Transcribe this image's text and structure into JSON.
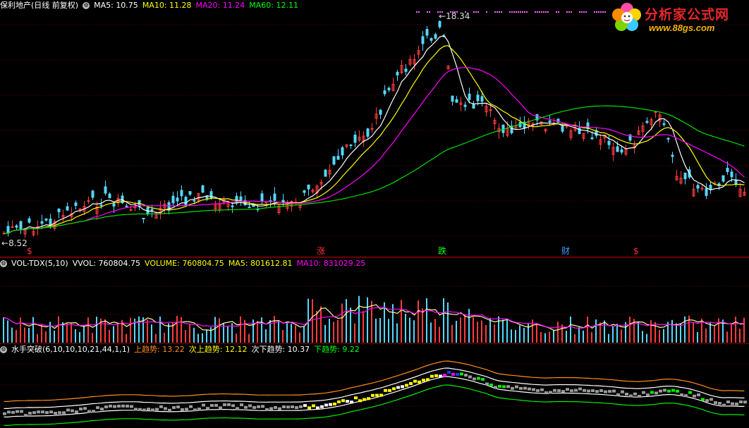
{
  "price_pane": {
    "title": "保利地产(日线 前复权)",
    "ma_labels": [
      {
        "name": "MA5",
        "value": "10.75",
        "color": "#ffffff"
      },
      {
        "name": "MA10",
        "value": "11.28",
        "color": "#ffff00"
      },
      {
        "name": "MA20",
        "value": "11.24",
        "color": "#ff00ff"
      },
      {
        "name": "MA60",
        "value": "12.11",
        "color": "#00ff00"
      }
    ],
    "high_label": "18.34",
    "low_label": "8.52",
    "markers": [
      {
        "text": "$",
        "color": "#ff3030"
      },
      {
        "text": "涨",
        "color": "#ff3030"
      },
      {
        "text": "跌",
        "color": "#00ff00"
      },
      {
        "text": "财",
        "color": "#3aa0ff"
      },
      {
        "text": "$",
        "color": "#ff3030"
      }
    ]
  },
  "volume_pane": {
    "title": "VOL-TDX(5,10)",
    "labels": [
      {
        "name": "VVOL",
        "value": "760804.75",
        "color": "#ffffff"
      },
      {
        "name": "VOLUME",
        "value": "760804.75",
        "color": "#ffff00"
      },
      {
        "name": "MA5",
        "value": "801612.81",
        "color": "#ffff00"
      },
      {
        "name": "MA10",
        "value": "831029.25",
        "color": "#ff00ff"
      }
    ]
  },
  "trend_pane": {
    "title": "水手突破(6,10,10,10,21,44,1,1)",
    "labels": [
      {
        "name": "上趋势",
        "value": "13.22",
        "color": "#ff8c1a"
      },
      {
        "name": "次上趋势",
        "value": "12.12",
        "color": "#ffff00"
      },
      {
        "name": "次下趋势",
        "value": "10.37",
        "color": "#ffffff"
      },
      {
        "name": "下趋势",
        "value": "9.22",
        "color": "#00ff00"
      }
    ]
  },
  "watermark": {
    "title": "分析家公式网",
    "url": "www.88gs.com"
  },
  "icons": {
    "settings": "gear-icon",
    "logo": "flower-logo-icon"
  },
  "colors": {
    "background": "#000000",
    "up": "#ff3c3c",
    "down": "#54d8ff",
    "grid": "#6a0000"
  }
}
